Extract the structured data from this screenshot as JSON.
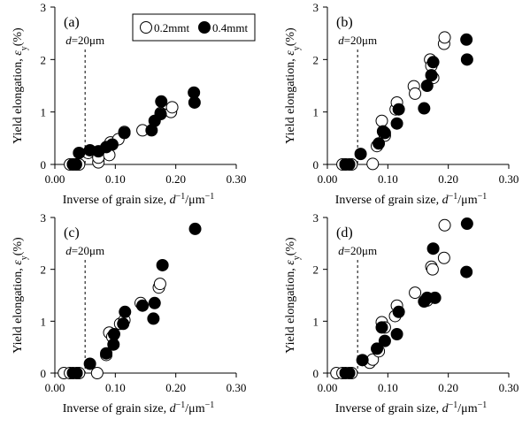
{
  "chart_data": {
    "type": "scatter",
    "x_range": [
      0,
      0.3
    ],
    "y_range": [
      0,
      3
    ],
    "x_ticks": [
      "0.00",
      "0.10",
      "0.20",
      "0.30"
    ],
    "y_ticks": [
      "0",
      "1",
      "2",
      "3"
    ],
    "xlabel": "Inverse of grain size, d⁻¹/μm⁻¹",
    "ylabel": "Yield elongation, εy(%)",
    "reference_x": 0.05,
    "reference_label": "d=20μm",
    "legend": {
      "placement": "top-center",
      "labels": [
        "0.2mmt",
        "0.4mmt"
      ]
    },
    "panels": [
      {
        "label": "(a)",
        "series": [
          {
            "name": "0.2mmt",
            "fill": "#ffffff",
            "points": [
              [
                0.025,
                0
              ],
              [
                0.03,
                0
              ],
              [
                0.036,
                0
              ],
              [
                0.04,
                0
              ],
              [
                0.055,
                0.22
              ],
              [
                0.072,
                0.04
              ],
              [
                0.072,
                0.13
              ],
              [
                0.085,
                0.3
              ],
              [
                0.09,
                0.18
              ],
              [
                0.092,
                0.42
              ],
              [
                0.105,
                0.48
              ],
              [
                0.115,
                0.62
              ],
              [
                0.145,
                0.65
              ],
              [
                0.175,
                0.98
              ],
              [
                0.192,
                1.0
              ],
              [
                0.194,
                1.09
              ]
            ]
          },
          {
            "name": "0.4mmt",
            "fill": "#000000",
            "points": [
              [
                0.03,
                0
              ],
              [
                0.035,
                0
              ],
              [
                0.04,
                0.22
              ],
              [
                0.058,
                0.27
              ],
              [
                0.072,
                0.25
              ],
              [
                0.085,
                0.33
              ],
              [
                0.095,
                0.38
              ],
              [
                0.115,
                0.6
              ],
              [
                0.16,
                0.65
              ],
              [
                0.165,
                0.83
              ],
              [
                0.175,
                0.96
              ],
              [
                0.176,
                1.2
              ],
              [
                0.23,
                1.37
              ],
              [
                0.231,
                1.18
              ]
            ]
          }
        ]
      },
      {
        "label": "(b)",
        "series": [
          {
            "name": "0.2mmt",
            "fill": "#ffffff",
            "points": [
              [
                0.025,
                0
              ],
              [
                0.03,
                0
              ],
              [
                0.04,
                0
              ],
              [
                0.075,
                0.01
              ],
              [
                0.082,
                0.35
              ],
              [
                0.09,
                0.83
              ],
              [
                0.095,
                0.55
              ],
              [
                0.113,
                1.05
              ],
              [
                0.115,
                1.18
              ],
              [
                0.143,
                1.49
              ],
              [
                0.145,
                1.35
              ],
              [
                0.17,
                2.0
              ],
              [
                0.172,
                1.88
              ],
              [
                0.175,
                1.65
              ],
              [
                0.193,
                2.3
              ],
              [
                0.194,
                2.42
              ]
            ]
          },
          {
            "name": "0.4mmt",
            "fill": "#000000",
            "points": [
              [
                0.03,
                0
              ],
              [
                0.036,
                0
              ],
              [
                0.055,
                0.2
              ],
              [
                0.085,
                0.4
              ],
              [
                0.092,
                0.63
              ],
              [
                0.095,
                0.6
              ],
              [
                0.115,
                0.78
              ],
              [
                0.118,
                1.05
              ],
              [
                0.16,
                1.07
              ],
              [
                0.165,
                1.5
              ],
              [
                0.172,
                1.7
              ],
              [
                0.175,
                1.95
              ],
              [
                0.23,
                2.38
              ],
              [
                0.231,
                2.0
              ]
            ]
          }
        ]
      },
      {
        "label": "(c)",
        "series": [
          {
            "name": "0.2mmt",
            "fill": "#ffffff",
            "points": [
              [
                0.015,
                0
              ],
              [
                0.025,
                0
              ],
              [
                0.04,
                0
              ],
              [
                0.07,
                0
              ],
              [
                0.085,
                0.35
              ],
              [
                0.09,
                0.78
              ],
              [
                0.095,
                0.7
              ],
              [
                0.108,
                0.95
              ],
              [
                0.115,
                1.02
              ],
              [
                0.142,
                1.35
              ],
              [
                0.172,
                1.65
              ],
              [
                0.174,
                1.72
              ]
            ]
          },
          {
            "name": "0.4mmt",
            "fill": "#000000",
            "points": [
              [
                0.03,
                0
              ],
              [
                0.036,
                0
              ],
              [
                0.058,
                0.18
              ],
              [
                0.085,
                0.38
              ],
              [
                0.097,
                0.55
              ],
              [
                0.098,
                0.75
              ],
              [
                0.113,
                0.95
              ],
              [
                0.116,
                1.18
              ],
              [
                0.145,
                1.3
              ],
              [
                0.163,
                1.05
              ],
              [
                0.165,
                1.35
              ],
              [
                0.178,
                2.08
              ],
              [
                0.232,
                2.78
              ]
            ]
          }
        ]
      },
      {
        "label": "(d)",
        "series": [
          {
            "name": "0.2mmt",
            "fill": "#ffffff",
            "points": [
              [
                0.015,
                0
              ],
              [
                0.025,
                0
              ],
              [
                0.04,
                0
              ],
              [
                0.07,
                0.2
              ],
              [
                0.075,
                0.26
              ],
              [
                0.085,
                0.42
              ],
              [
                0.09,
                0.98
              ],
              [
                0.095,
                0.88
              ],
              [
                0.112,
                1.1
              ],
              [
                0.115,
                1.3
              ],
              [
                0.145,
                1.55
              ],
              [
                0.165,
                1.4
              ],
              [
                0.172,
                2.05
              ],
              [
                0.174,
                2.0
              ],
              [
                0.193,
                2.22
              ],
              [
                0.194,
                2.85
              ]
            ]
          },
          {
            "name": "0.4mmt",
            "fill": "#000000",
            "points": [
              [
                0.03,
                0
              ],
              [
                0.036,
                0
              ],
              [
                0.058,
                0.25
              ],
              [
                0.082,
                0.47
              ],
              [
                0.09,
                0.88
              ],
              [
                0.095,
                0.62
              ],
              [
                0.115,
                0.75
              ],
              [
                0.118,
                1.18
              ],
              [
                0.16,
                1.38
              ],
              [
                0.165,
                1.45
              ],
              [
                0.175,
                2.4
              ],
              [
                0.178,
                1.45
              ],
              [
                0.23,
                1.95
              ],
              [
                0.231,
                2.88
              ]
            ]
          }
        ]
      }
    ]
  }
}
